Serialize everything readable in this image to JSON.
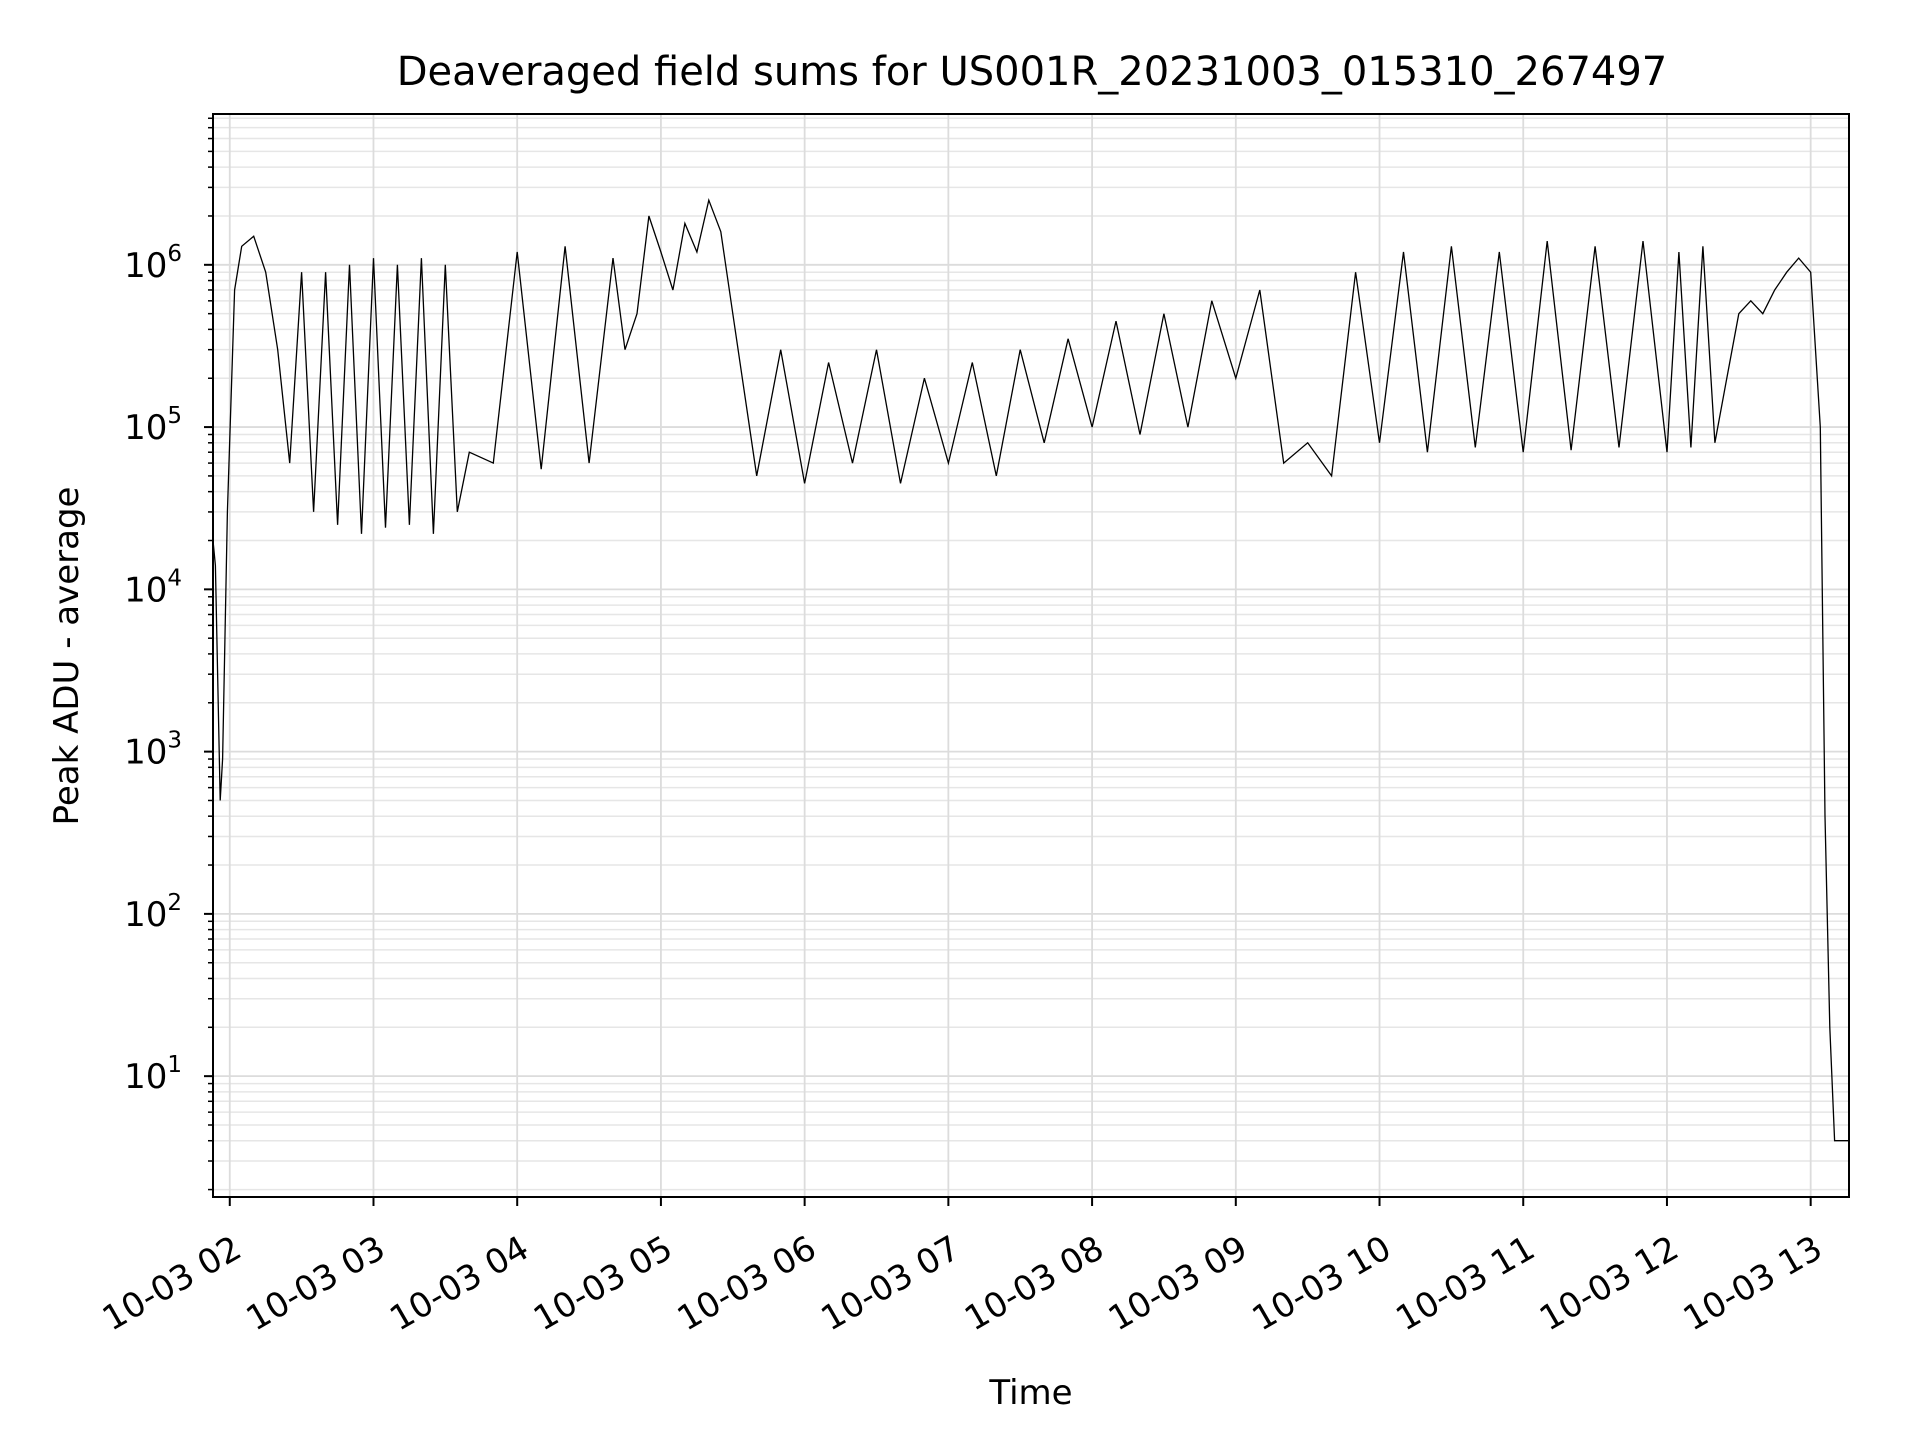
{
  "chart_data": {
    "type": "line",
    "title": "Deaveraged field sums for US001R_20231003_015310_267497",
    "xlabel": "Time",
    "ylabel": "Peak ADU - average",
    "yscale": "log",
    "ylim": [
      1.8,
      8500000
    ],
    "xlim": [
      "2023-10-03 01:53",
      "2023-10-03 13:16"
    ],
    "x_ticks": [
      "10-03 02",
      "10-03 03",
      "10-03 04",
      "10-03 05",
      "10-03 06",
      "10-03 07",
      "10-03 08",
      "10-03 09",
      "10-03 10",
      "10-03 11",
      "10-03 12",
      "10-03 13"
    ],
    "y_ticks": [
      {
        "base": "10",
        "exp": "1",
        "value": 10
      },
      {
        "base": "10",
        "exp": "2",
        "value": 100
      },
      {
        "base": "10",
        "exp": "3",
        "value": 1000
      },
      {
        "base": "10",
        "exp": "4",
        "value": 10000
      },
      {
        "base": "10",
        "exp": "5",
        "value": 100000
      },
      {
        "base": "10",
        "exp": "6",
        "value": 1000000
      }
    ],
    "grid": true,
    "line_color": "#000000",
    "series": [
      {
        "x": [
          "01:53",
          "01:54",
          "01:56",
          "01:57",
          "01:59",
          "02:02",
          "02:05",
          "02:10",
          "02:15",
          "02:20",
          "02:25",
          "02:30",
          "02:35",
          "02:40",
          "02:45",
          "02:50",
          "02:55",
          "03:00",
          "03:05",
          "03:10",
          "03:15",
          "03:20",
          "03:25",
          "03:30",
          "03:35",
          "03:40",
          "03:50",
          "04:00",
          "04:10",
          "04:20",
          "04:30",
          "04:40",
          "04:45",
          "04:50",
          "04:55",
          "05:00",
          "05:05",
          "05:10",
          "05:15",
          "05:20",
          "05:25",
          "05:30",
          "05:40",
          "05:50",
          "06:00",
          "06:10",
          "06:20",
          "06:30",
          "06:40",
          "06:50",
          "07:00",
          "07:10",
          "07:20",
          "07:30",
          "07:40",
          "07:50",
          "08:00",
          "08:10",
          "08:20",
          "08:30",
          "08:40",
          "08:50",
          "09:00",
          "09:10",
          "09:20",
          "09:30",
          "09:40",
          "09:50",
          "10:00",
          "10:10",
          "10:20",
          "10:30",
          "10:40",
          "10:50",
          "11:00",
          "11:10",
          "11:20",
          "11:30",
          "11:40",
          "11:50",
          "12:00",
          "12:05",
          "12:10",
          "12:15",
          "12:20",
          "12:25",
          "12:30",
          "12:35",
          "12:40",
          "12:45",
          "12:50",
          "12:55",
          "13:00",
          "13:04",
          "13:06",
          "13:08",
          "13:10",
          "13:12",
          "13:14",
          "13:16"
        ],
        "y": [
          20000,
          14000,
          500,
          900,
          30000,
          700000,
          1300000,
          1500000,
          900000,
          300000,
          60000,
          900000,
          30000,
          900000,
          25000,
          1000000,
          22000,
          1100000,
          24000,
          1000000,
          25000,
          1100000,
          22000,
          1000000,
          30000,
          70000,
          60000,
          1200000,
          55000,
          1300000,
          60000,
          1100000,
          300000,
          500000,
          2000000,
          1200000,
          700000,
          1800000,
          1200000,
          2500000,
          1600000,
          500000,
          50000,
          300000,
          45000,
          250000,
          60000,
          300000,
          45000,
          200000,
          60000,
          250000,
          50000,
          300000,
          80000,
          350000,
          100000,
          450000,
          90000,
          500000,
          100000,
          600000,
          200000,
          700000,
          60000,
          80000,
          50000,
          900000,
          80000,
          1200000,
          70000,
          1300000,
          75000,
          1200000,
          70000,
          1400000,
          72000,
          1300000,
          75000,
          1400000,
          70000,
          1200000,
          75000,
          1300000,
          80000,
          200000,
          500000,
          600000,
          500000,
          700000,
          900000,
          1100000,
          900000,
          100000,
          400,
          20,
          4,
          4,
          4,
          4
        ]
      }
    ]
  }
}
